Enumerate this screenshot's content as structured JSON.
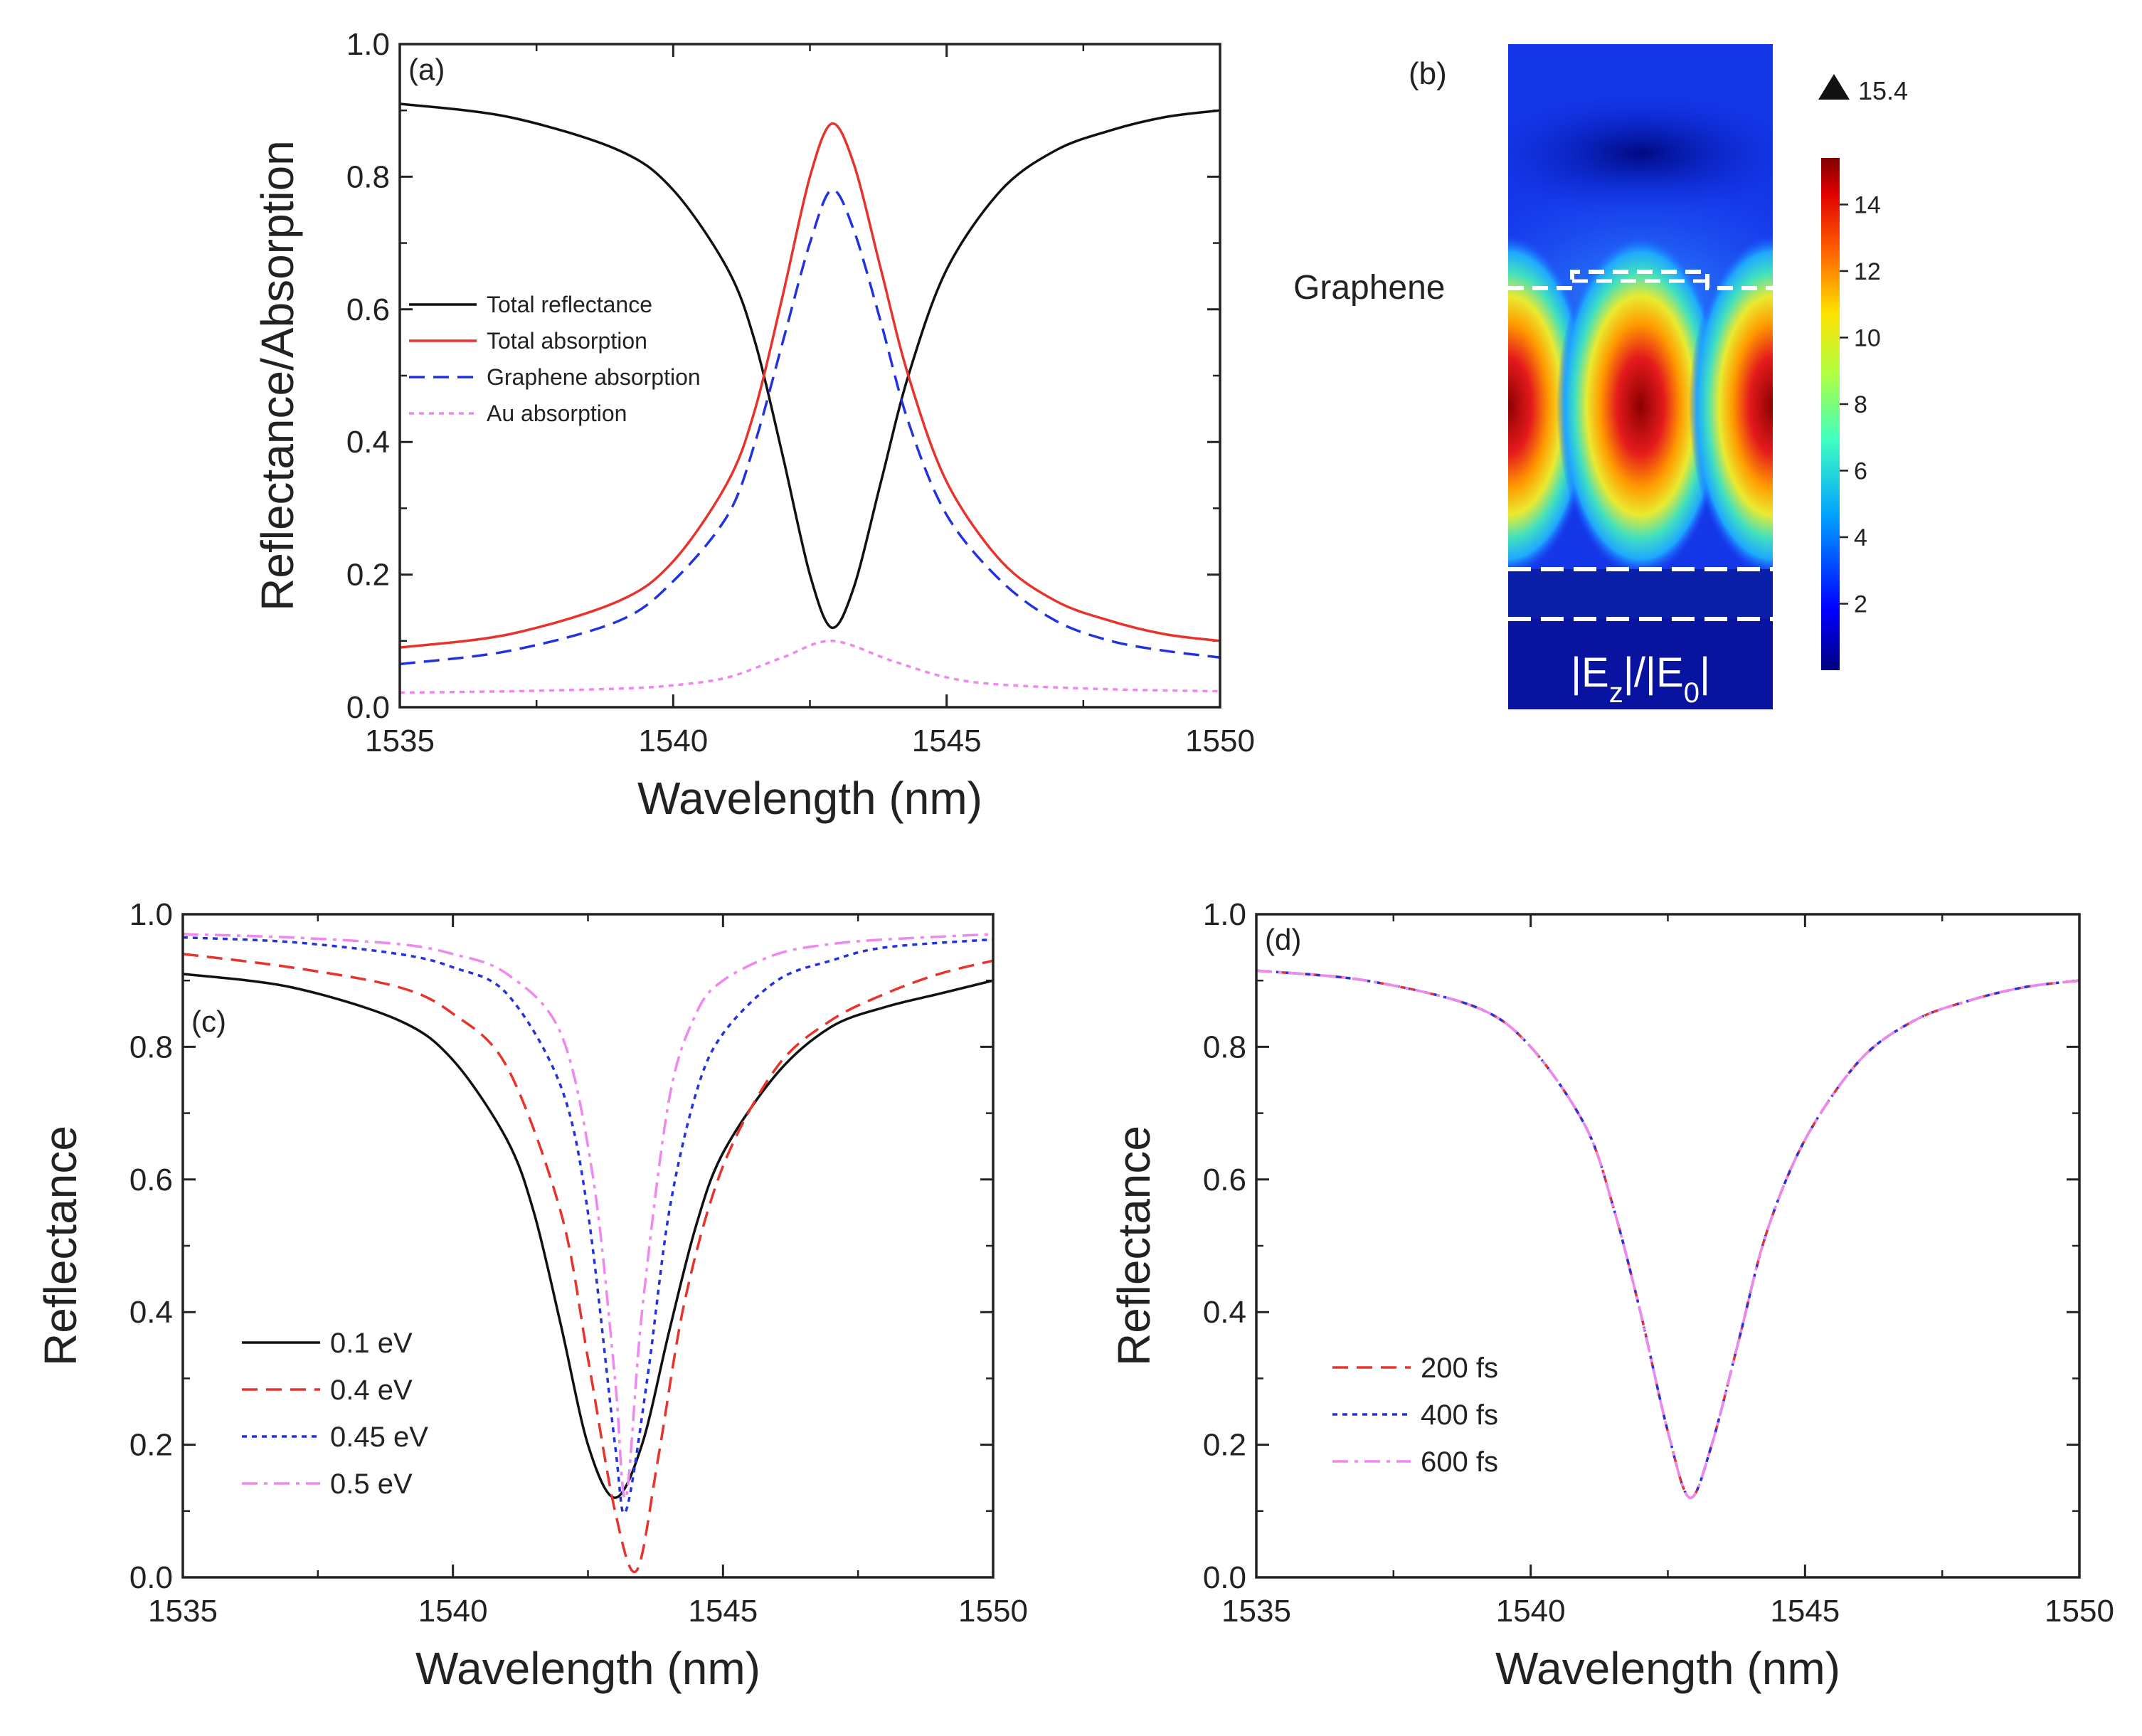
{
  "colors": {
    "black": "#111111",
    "red": "#e8332c",
    "blue": "#2233dd",
    "pink": "#ee88ee",
    "axis": "#222222"
  },
  "panel_b": {
    "label": "(b)",
    "graphene_label": "Graphene",
    "max_marker": "15.4",
    "field_label": "|E_z|/|E_0|",
    "colorbar_ticks": [
      "2",
      "4",
      "6",
      "8",
      "10",
      "12",
      "14"
    ],
    "colorbar_range": [
      0,
      15.4
    ]
  },
  "chart_data": [
    {
      "id": "a",
      "type": "line",
      "panel_label": "(a)",
      "xlabel": "Wavelength (nm)",
      "ylabel": "Reflectance/Absorption",
      "xlim": [
        1535,
        1550
      ],
      "ylim": [
        0,
        1.0
      ],
      "xticks": [
        "1535",
        "1540",
        "1545",
        "1550"
      ],
      "yticks": [
        "0.0",
        "0.2",
        "0.4",
        "0.6",
        "0.8",
        "1.0"
      ],
      "legend_position": "middle-left",
      "series": [
        {
          "name": "Total reflectance",
          "style": "solid",
          "color": "#111111",
          "x": [
            1535,
            1537,
            1539,
            1540,
            1541,
            1541.5,
            1542,
            1542.5,
            1542.9,
            1543.3,
            1543.8,
            1544.3,
            1545,
            1546,
            1547,
            1548,
            1549,
            1550
          ],
          "y": [
            0.91,
            0.89,
            0.84,
            0.78,
            0.66,
            0.55,
            0.38,
            0.2,
            0.12,
            0.18,
            0.34,
            0.5,
            0.66,
            0.78,
            0.84,
            0.87,
            0.89,
            0.9
          ]
        },
        {
          "name": "Total absorption",
          "style": "solid",
          "color": "#e8332c",
          "x": [
            1535,
            1537,
            1539,
            1540,
            1541,
            1541.5,
            1542,
            1542.5,
            1542.9,
            1543.3,
            1543.8,
            1544.3,
            1545,
            1546,
            1547,
            1548,
            1549,
            1550
          ],
          "y": [
            0.09,
            0.11,
            0.16,
            0.22,
            0.34,
            0.45,
            0.62,
            0.8,
            0.88,
            0.82,
            0.66,
            0.5,
            0.34,
            0.22,
            0.16,
            0.13,
            0.11,
            0.1
          ]
        },
        {
          "name": "Graphene absorption",
          "style": "dashed",
          "color": "#2233dd",
          "x": [
            1535,
            1537,
            1539,
            1540,
            1541,
            1541.5,
            1542,
            1542.5,
            1542.9,
            1543.3,
            1543.8,
            1544.3,
            1545,
            1546,
            1547,
            1548,
            1549,
            1550
          ],
          "y": [
            0.065,
            0.085,
            0.13,
            0.19,
            0.29,
            0.4,
            0.55,
            0.7,
            0.78,
            0.72,
            0.58,
            0.43,
            0.29,
            0.19,
            0.13,
            0.1,
            0.085,
            0.075
          ]
        },
        {
          "name": "Au absorption",
          "style": "dotted",
          "color": "#ee88ee",
          "x": [
            1535,
            1537,
            1539,
            1540,
            1541,
            1542,
            1542.9,
            1544,
            1545,
            1546,
            1548,
            1550
          ],
          "y": [
            0.022,
            0.024,
            0.028,
            0.033,
            0.045,
            0.075,
            0.1,
            0.07,
            0.045,
            0.034,
            0.027,
            0.024
          ]
        }
      ]
    },
    {
      "id": "c",
      "type": "line",
      "panel_label": "(c)",
      "xlabel": "Wavelength (nm)",
      "ylabel": "Reflectance",
      "xlim": [
        1535,
        1550
      ],
      "ylim": [
        0,
        1.0
      ],
      "xticks": [
        "1535",
        "1540",
        "1545",
        "1550"
      ],
      "yticks": [
        "0.0",
        "0.2",
        "0.4",
        "0.6",
        "0.8",
        "1.0"
      ],
      "legend_position": "bottom-left",
      "series": [
        {
          "name": "0.1 eV",
          "style": "solid",
          "color": "#111111",
          "x": [
            1535,
            1537,
            1539,
            1540,
            1541,
            1541.5,
            1542,
            1542.5,
            1543,
            1543.5,
            1544,
            1544.5,
            1545,
            1546,
            1547,
            1548,
            1549,
            1550
          ],
          "y": [
            0.91,
            0.89,
            0.84,
            0.78,
            0.66,
            0.55,
            0.38,
            0.2,
            0.12,
            0.2,
            0.37,
            0.53,
            0.64,
            0.76,
            0.83,
            0.86,
            0.88,
            0.9
          ]
        },
        {
          "name": "0.4 eV",
          "style": "dashed",
          "color": "#e8332c",
          "x": [
            1535,
            1537,
            1539,
            1540,
            1541,
            1542,
            1542.5,
            1543,
            1543.4,
            1543.8,
            1544.3,
            1545,
            1546,
            1547,
            1548,
            1549,
            1550
          ],
          "y": [
            0.94,
            0.92,
            0.89,
            0.85,
            0.77,
            0.55,
            0.33,
            0.1,
            0.01,
            0.18,
            0.42,
            0.62,
            0.77,
            0.84,
            0.88,
            0.91,
            0.93
          ]
        },
        {
          "name": "0.45 eV",
          "style": "dotted",
          "color": "#2233dd",
          "x": [
            1535,
            1537,
            1539,
            1540,
            1541,
            1542,
            1542.5,
            1543,
            1543.2,
            1543.6,
            1544,
            1544.5,
            1545,
            1546,
            1547,
            1548,
            1550
          ],
          "y": [
            0.965,
            0.958,
            0.94,
            0.92,
            0.88,
            0.74,
            0.55,
            0.2,
            0.1,
            0.3,
            0.55,
            0.73,
            0.82,
            0.9,
            0.93,
            0.95,
            0.962
          ]
        },
        {
          "name": "0.5 eV",
          "style": "dashdot",
          "color": "#ee88ee",
          "x": [
            1535,
            1537,
            1539,
            1540,
            1541,
            1542,
            1542.6,
            1543,
            1543.2,
            1543.5,
            1544,
            1544.5,
            1545,
            1546,
            1547,
            1548,
            1550
          ],
          "y": [
            0.97,
            0.965,
            0.955,
            0.94,
            0.91,
            0.82,
            0.6,
            0.3,
            0.12,
            0.4,
            0.72,
            0.85,
            0.9,
            0.94,
            0.955,
            0.962,
            0.97
          ]
        }
      ]
    },
    {
      "id": "d",
      "type": "line",
      "panel_label": "(d)",
      "xlabel": "Wavelength (nm)",
      "ylabel": "Reflectance",
      "xlim": [
        1535,
        1550
      ],
      "ylim": [
        0,
        1.0
      ],
      "xticks": [
        "1535",
        "1540",
        "1545",
        "1550"
      ],
      "yticks": [
        "0.0",
        "0.2",
        "0.4",
        "0.6",
        "0.8",
        "1.0"
      ],
      "legend_position": "bottom-left",
      "series": [
        {
          "name": "200 fs",
          "style": "dashed",
          "color": "#e8332c",
          "x": [
            1535,
            1537,
            1539,
            1540,
            1541,
            1541.5,
            1542,
            1542.5,
            1542.9,
            1543.3,
            1543.8,
            1544.3,
            1545,
            1546,
            1547,
            1548,
            1549,
            1550
          ],
          "y": [
            0.915,
            0.9,
            0.86,
            0.8,
            0.68,
            0.56,
            0.4,
            0.22,
            0.12,
            0.2,
            0.36,
            0.52,
            0.66,
            0.78,
            0.84,
            0.87,
            0.89,
            0.9
          ]
        },
        {
          "name": "400 fs",
          "style": "dotted",
          "color": "#2233dd",
          "x": [
            1535,
            1537,
            1539,
            1540,
            1541,
            1541.5,
            1542,
            1542.5,
            1542.9,
            1543.3,
            1543.8,
            1544.3,
            1545,
            1546,
            1547,
            1548,
            1549,
            1550
          ],
          "y": [
            0.915,
            0.9,
            0.86,
            0.8,
            0.68,
            0.56,
            0.4,
            0.22,
            0.12,
            0.2,
            0.36,
            0.52,
            0.66,
            0.78,
            0.84,
            0.87,
            0.89,
            0.9
          ]
        },
        {
          "name": "600 fs",
          "style": "dashdot",
          "color": "#ee88ee",
          "x": [
            1535,
            1537,
            1539,
            1540,
            1541,
            1541.5,
            1542,
            1542.5,
            1542.9,
            1543.3,
            1543.8,
            1544.3,
            1545,
            1546,
            1547,
            1548,
            1549,
            1550
          ],
          "y": [
            0.915,
            0.9,
            0.86,
            0.8,
            0.68,
            0.56,
            0.4,
            0.22,
            0.12,
            0.2,
            0.36,
            0.52,
            0.66,
            0.78,
            0.84,
            0.87,
            0.89,
            0.9
          ]
        }
      ]
    }
  ]
}
